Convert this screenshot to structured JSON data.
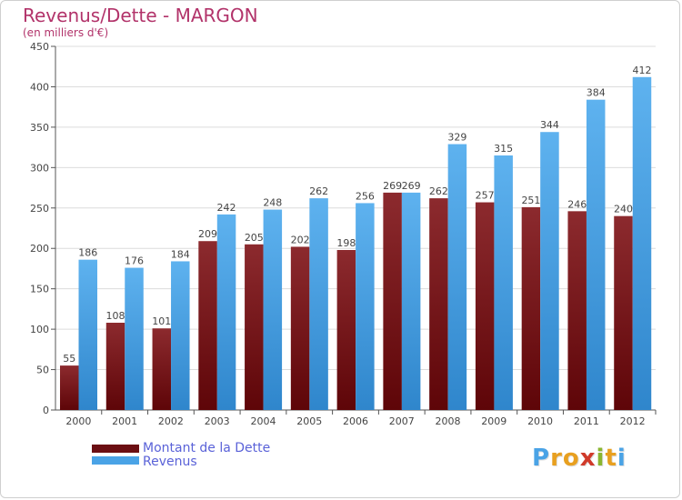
{
  "header": {
    "title": "Revenus/Dette - MARGON",
    "subtitle": "(en milliers d'€)"
  },
  "chart_data": {
    "type": "bar",
    "categories": [
      "2000",
      "2001",
      "2002",
      "2003",
      "2004",
      "2005",
      "2006",
      "2007",
      "2008",
      "2009",
      "2010",
      "2011",
      "2012"
    ],
    "series": [
      {
        "name": "Montant de la Dette",
        "values": [
          55,
          108,
          101,
          209,
          205,
          202,
          198,
          269,
          262,
          257,
          251,
          246,
          240
        ],
        "color": "#7a1518"
      },
      {
        "name": "Revenus",
        "values": [
          186,
          176,
          184,
          242,
          248,
          262,
          256,
          269,
          329,
          315,
          344,
          384,
          412
        ],
        "color": "#4aa3e6"
      }
    ],
    "yticks": [
      "0",
      "50",
      "100",
      "150",
      "200",
      "250",
      "300",
      "350",
      "400",
      "450"
    ],
    "ylim": [
      0,
      450
    ],
    "grid": true,
    "legend_position": "bottom-left"
  },
  "legend": {
    "items": [
      {
        "label": "Montant de la Dette",
        "color": "#7a1518"
      },
      {
        "label": "Revenus",
        "color": "#4aa3e6"
      }
    ]
  },
  "logo": {
    "text": "Proxiti"
  }
}
